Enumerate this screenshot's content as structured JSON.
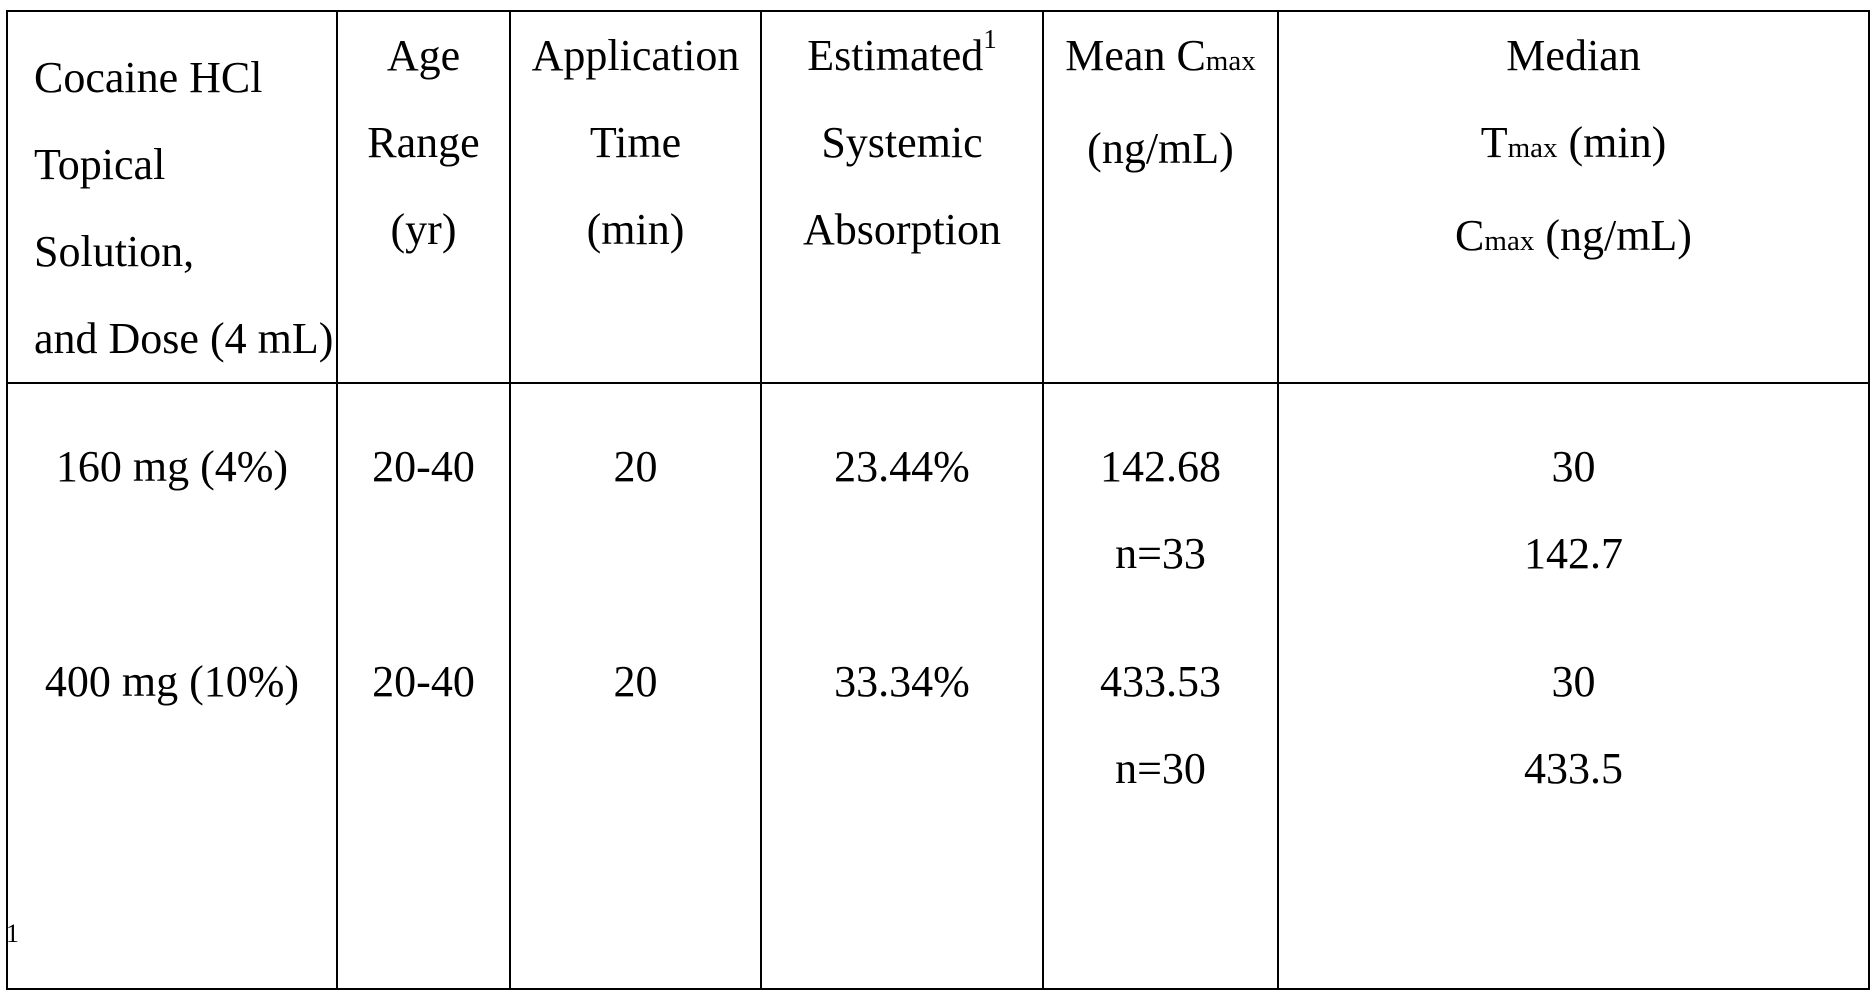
{
  "table": {
    "headers": {
      "col1": [
        "Cocaine HCl",
        "Topical Solution,",
        "and Dose (4 mL)"
      ],
      "col2": [
        "Age",
        "Range",
        "(yr)"
      ],
      "col3": [
        "Application",
        "Time",
        "(min)"
      ],
      "col4": {
        "line1": "Estimated",
        "sup": "1",
        "line2": "Systemic",
        "line3": "Absorption"
      },
      "col5": {
        "line1_main": "Mean C",
        "line1_sub": "max",
        "line2": "(ng/mL)"
      },
      "col6": {
        "line1": "Median",
        "line2_main": "T",
        "line2_sub": "max",
        "line2_rest": " (min)",
        "line3_main": "C",
        "line3_sub": "max",
        "line3_rest": " (ng/mL)"
      }
    },
    "rows": [
      {
        "dose": "160 mg (4%)",
        "age_range": "20-40",
        "application_time": "20",
        "absorption": "23.44%",
        "mean_cmax": "142.68",
        "n": "n=33",
        "median_tmax": "30",
        "median_cmax": "142.7"
      },
      {
        "dose": "400 mg (10%)",
        "age_range": "20-40",
        "application_time": "20",
        "absorption": "33.34%",
        "mean_cmax": "433.53",
        "n": "n=30",
        "median_tmax": "30",
        "median_cmax": "433.5"
      }
    ]
  },
  "footnote_marker": "1"
}
